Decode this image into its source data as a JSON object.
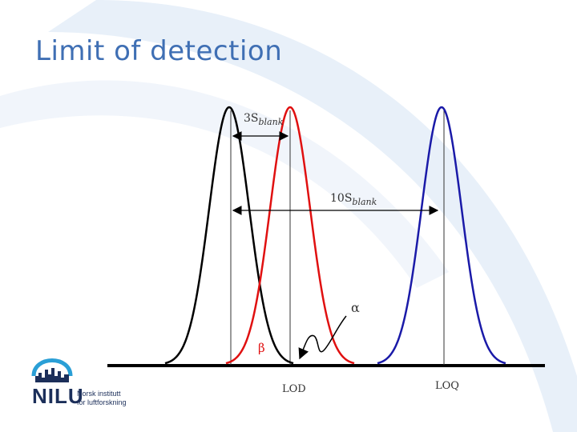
{
  "slide": {
    "title": "Limit of detection"
  },
  "diagram": {
    "labels": {
      "three_s_blank": "3S",
      "three_s_blank_sub": "blank",
      "ten_s_blank": "10S",
      "ten_s_blank_sub": "blank",
      "alpha": "α",
      "beta": "β",
      "lod": "LOD",
      "loq": "LOQ"
    },
    "colors": {
      "blank_curve": "#000000",
      "lod_curve": "#e01010",
      "loq_curve": "#1a1aa8",
      "accent_title": "#3f6fb4",
      "background_arc": "#e6eef8"
    }
  },
  "logo": {
    "name": "NILU",
    "line1": "Norsk institutt",
    "line2": "for luftforskning"
  }
}
